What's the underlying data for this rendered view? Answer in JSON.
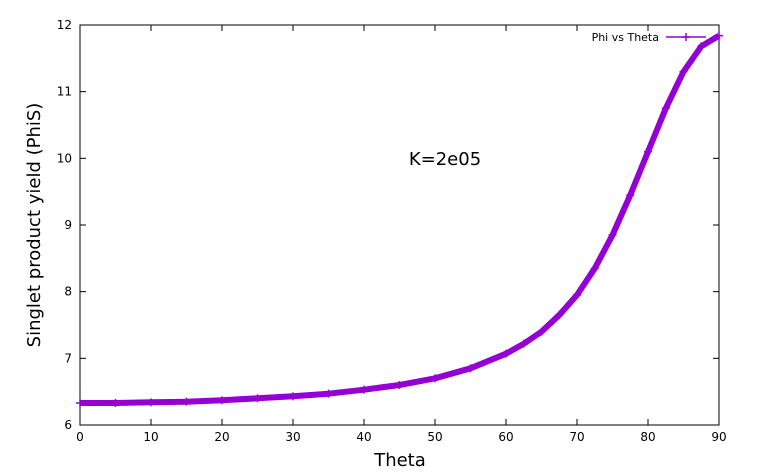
{
  "chart_data": {
    "type": "line",
    "title": "",
    "xlabel": "Theta",
    "ylabel": "Singlet product yield (PhiS)",
    "xlim": [
      0,
      90
    ],
    "ylim": [
      6,
      12
    ],
    "xticks": [
      0,
      10,
      20,
      30,
      40,
      50,
      60,
      70,
      80,
      90
    ],
    "yticks": [
      6,
      7,
      8,
      9,
      10,
      11,
      12
    ],
    "grid": false,
    "legend_position": "top-right",
    "annotation": "K=2e05",
    "series": [
      {
        "name": "Phi vs Theta",
        "color": "#9400d3",
        "marker": "plus",
        "x": [
          0,
          5,
          10,
          15,
          20,
          25,
          30,
          35,
          40,
          45,
          50,
          55,
          60,
          62.5,
          65,
          67.5,
          70,
          72.5,
          75,
          77.5,
          80,
          82.5,
          85,
          87.5,
          90
        ],
        "y": [
          6.33,
          6.33,
          6.34,
          6.35,
          6.37,
          6.4,
          6.43,
          6.47,
          6.53,
          6.6,
          6.7,
          6.85,
          7.07,
          7.22,
          7.4,
          7.65,
          7.95,
          8.35,
          8.85,
          9.45,
          10.1,
          10.75,
          11.3,
          11.68,
          11.84
        ]
      }
    ]
  }
}
